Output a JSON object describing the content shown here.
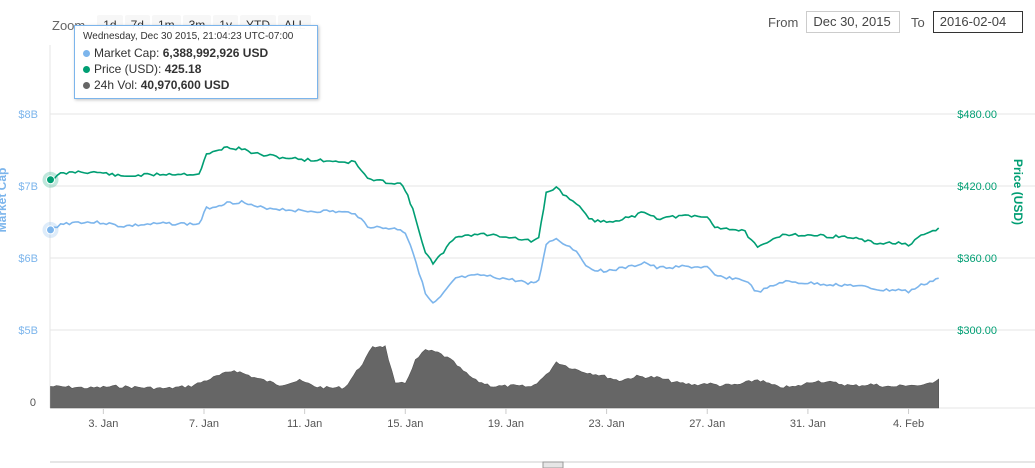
{
  "zoom": {
    "label": "Zoom",
    "buttons": [
      "1d",
      "7d",
      "1m",
      "3m",
      "1y",
      "YTD",
      "ALL"
    ]
  },
  "range": {
    "from_label": "From",
    "from_value": "Dec 30, 2015",
    "to_label": "To",
    "to_value": "2016-02-04"
  },
  "tooltip": {
    "date": "Wednesday, Dec 30 2015, 21:04:23 UTC-07:00",
    "rows": [
      {
        "label": "Market Cap:",
        "value": "6,388,992,926 USD",
        "color": "#7cb5ec"
      },
      {
        "label": "Price (USD):",
        "value": "425.18",
        "color": "#009e73"
      },
      {
        "label": "24h Vol:",
        "value": "40,970,600 USD",
        "color": "#666666"
      }
    ]
  },
  "chart_data": {
    "type": "line",
    "left_axis": {
      "title": "Market Cap",
      "ticks": [
        "$5B",
        "$6B",
        "$7B",
        "$8B"
      ],
      "values": [
        5,
        6,
        7,
        8
      ],
      "unit": "billion USD",
      "color": "#7cb5ec"
    },
    "right_axis": {
      "title": "Price (USD)",
      "ticks": [
        "$300.00",
        "$360.00",
        "$420.00",
        "$480.00"
      ],
      "values": [
        300,
        360,
        420,
        480
      ],
      "color": "#009e73"
    },
    "volume_axis": {
      "ticks": [
        "0"
      ],
      "values": [
        0
      ]
    },
    "x_ticks": [
      "3. Jan",
      "7. Jan",
      "11. Jan",
      "15. Jan",
      "19. Jan",
      "23. Jan",
      "27. Jan",
      "31. Jan",
      "4. Feb"
    ],
    "x_tick_days": [
      3,
      7,
      11,
      15,
      19,
      23,
      27,
      31,
      35
    ],
    "x_range_days": [
      0.88,
      36.25
    ],
    "series": [
      {
        "name": "Market Cap",
        "color": "#7cb5ec",
        "x_days": [
          0.9,
          1.3,
          2,
          3,
          3.7,
          4.5,
          5.5,
          6.8,
          7.1,
          7.6,
          7.8,
          8.5,
          9,
          10,
          11,
          12,
          12.6,
          13,
          13.5,
          14,
          14.8,
          15,
          15.3,
          15.8,
          16.1,
          16.4,
          17,
          18,
          19,
          20,
          20.3,
          20.6,
          21,
          21.4,
          21.8,
          22.3,
          23,
          24,
          24.5,
          25,
          26,
          27,
          27.3,
          28,
          28.5,
          29,
          30,
          31,
          32,
          32.8,
          33.5,
          34,
          34.6,
          35,
          35.5,
          36.2
        ],
        "values": [
          6.39,
          6.47,
          6.5,
          6.49,
          6.44,
          6.46,
          6.48,
          6.47,
          6.69,
          6.73,
          6.76,
          6.78,
          6.71,
          6.68,
          6.65,
          6.65,
          6.63,
          6.63,
          6.44,
          6.42,
          6.4,
          6.35,
          6.1,
          5.5,
          5.36,
          5.45,
          5.72,
          5.76,
          5.71,
          5.65,
          5.68,
          6.2,
          6.27,
          6.18,
          6.1,
          5.85,
          5.82,
          5.88,
          5.94,
          5.86,
          5.88,
          5.87,
          5.75,
          5.72,
          5.69,
          5.52,
          5.67,
          5.65,
          5.63,
          5.62,
          5.58,
          5.55,
          5.56,
          5.53,
          5.62,
          5.72
        ]
      },
      {
        "name": "Price (USD)",
        "color": "#009e73",
        "x_days": [
          0.9,
          1.3,
          2,
          3,
          3.7,
          4.5,
          5.5,
          6.8,
          7.1,
          7.6,
          7.8,
          8.5,
          9,
          10,
          11,
          12,
          12.6,
          13,
          13.5,
          14,
          14.8,
          15,
          15.3,
          15.8,
          16.1,
          16.4,
          17,
          18,
          19,
          20,
          20.3,
          20.6,
          21,
          21.4,
          21.8,
          22.3,
          23,
          24,
          24.5,
          25,
          26,
          27,
          27.3,
          28,
          28.5,
          29,
          30,
          31,
          32,
          32.8,
          33.5,
          34,
          34.6,
          35,
          35.5,
          36.2
        ],
        "values": [
          425.18,
          430,
          432,
          431,
          428,
          429,
          430,
          430,
          446,
          450,
          452,
          451,
          447,
          444,
          442,
          441,
          440,
          440,
          426,
          424,
          422,
          417,
          400,
          365,
          355,
          362,
          378,
          380,
          378,
          374,
          376,
          414,
          419,
          411,
          406,
          392,
          390,
          394,
          399,
          393,
          395,
          394,
          386,
          384,
          382,
          368,
          380,
          379,
          378,
          377,
          373,
          372,
          373,
          370,
          378,
          385
        ]
      },
      {
        "name": "24h Vol",
        "color": "#666666",
        "x_days": [
          0.9,
          1.5,
          2.5,
          3.5,
          4.5,
          5.5,
          6.5,
          7.5,
          8.2,
          9,
          10,
          10.8,
          11.5,
          12,
          12.6,
          13.3,
          13.7,
          14,
          14.2,
          14.6,
          15,
          15.4,
          15.8,
          16.3,
          16.8,
          17.3,
          17.8,
          18.5,
          19.3,
          20,
          20.6,
          21,
          21.5,
          22,
          22.8,
          23.5,
          24.2,
          25,
          25.8,
          26.5,
          27,
          27.5,
          28.2,
          29,
          29.8,
          30.5,
          31.3,
          32,
          32.8,
          33.5,
          34.3,
          35,
          35.6,
          36.2
        ],
        "values_million": [
          41,
          40,
          38,
          41,
          39,
          37,
          42,
          60,
          72,
          58,
          44,
          52,
          40,
          38,
          39,
          85,
          115,
          118,
          117,
          45,
          47,
          90,
          110,
          105,
          92,
          70,
          52,
          41,
          42,
          40,
          62,
          88,
          78,
          70,
          62,
          52,
          60,
          58,
          48,
          44,
          47,
          43,
          44,
          54,
          40,
          40,
          52,
          48,
          42,
          45,
          40,
          44,
          42,
          55
        ]
      }
    ],
    "highlight_day": 0.9
  }
}
